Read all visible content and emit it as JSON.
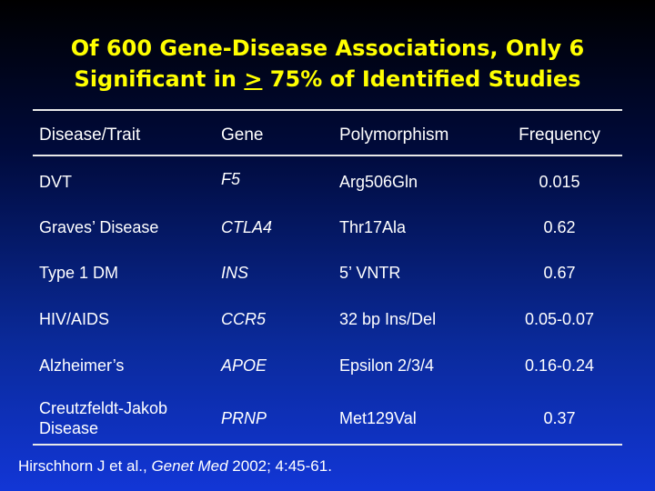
{
  "title": {
    "line1": "Of 600 Gene-Disease Associations, Only 6",
    "line2_before": "Significant in ",
    "line2_symbol": ">",
    "line2_after": " 75% of Identified Studies"
  },
  "table": {
    "headers": [
      "Disease/Trait",
      "Gene",
      "Polymorphism",
      "Frequency"
    ],
    "rows": [
      {
        "disease": "DVT",
        "gene": "F5",
        "polymorphism": "Arg506Gln",
        "frequency": "0.015"
      },
      {
        "disease": "Graves’ Disease",
        "gene": "CTLA4",
        "polymorphism": "Thr17Ala",
        "frequency": "0.62"
      },
      {
        "disease": "Type 1 DM",
        "gene": "INS",
        "polymorphism": "5’ VNTR",
        "frequency": "0.67"
      },
      {
        "disease": "HIV/AIDS",
        "gene": "CCR5",
        "polymorphism": "32 bp Ins/Del",
        "frequency": "0.05-0.07"
      },
      {
        "disease": "Alzheimer’s",
        "gene": "APOE",
        "polymorphism": "Epsilon 2/3/4",
        "frequency": "0.16-0.24"
      },
      {
        "disease": "Creutzfeldt-Jakob Disease",
        "gene": "PRNP",
        "polymorphism": "Met129Val",
        "frequency": "0.37"
      }
    ]
  },
  "citation": {
    "authors": "Hirschhorn J et al., ",
    "journal": "Genet Med",
    "rest": " 2002; 4:45-61."
  }
}
